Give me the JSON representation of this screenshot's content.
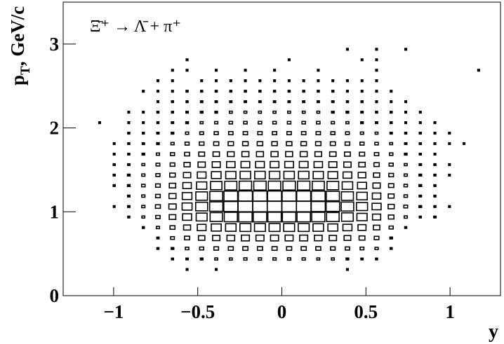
{
  "chart_data": {
    "type": "box2d",
    "annotation": "Ξ̄⁺ → Λ̄ + π⁺",
    "x_label": "y",
    "y_label": {
      "main": "p",
      "sub": "T",
      "rest": ", GeV/c"
    },
    "xlim": [
      -1.3,
      1.3
    ],
    "ylim": [
      0,
      3.5
    ],
    "xticks": [
      {
        "value": -1,
        "label": "−1"
      },
      {
        "value": -0.5,
        "label": "−0.5"
      },
      0,
      0.5,
      1
    ],
    "yticks": [
      0,
      1,
      2,
      3
    ],
    "color": "#000000",
    "z": [
      [
        0,
        0,
        0,
        0,
        0,
        0,
        0,
        0,
        0,
        0,
        0,
        0,
        0,
        0,
        0,
        0,
        0,
        0,
        0,
        0,
        0,
        0,
        0,
        0,
        0,
        0,
        0,
        0,
        0,
        0
      ],
      [
        0,
        0,
        0,
        0,
        0,
        0,
        0,
        0,
        0,
        0,
        0,
        0,
        0,
        0,
        0,
        0,
        0,
        0,
        0,
        0,
        0,
        0,
        0,
        0,
        0,
        0,
        0,
        0,
        0,
        0
      ],
      [
        0,
        0,
        0,
        0,
        0,
        0,
        0,
        0,
        12,
        0,
        12,
        0,
        0,
        0,
        0,
        0,
        0,
        0,
        0,
        12,
        0,
        0,
        0,
        0,
        0,
        0,
        0,
        0,
        0,
        0
      ],
      [
        0,
        0,
        0,
        0,
        0,
        0,
        0,
        14,
        16,
        18,
        20,
        20,
        22,
        22,
        22,
        22,
        22,
        20,
        20,
        18,
        16,
        14,
        0,
        0,
        0,
        0,
        0,
        0,
        0,
        0
      ],
      [
        0,
        0,
        0,
        0,
        0,
        0,
        14,
        18,
        24,
        28,
        32,
        34,
        35,
        35,
        35,
        35,
        35,
        34,
        32,
        30,
        26,
        22,
        14,
        0,
        0,
        0,
        0,
        0,
        0,
        0
      ],
      [
        0,
        0,
        0,
        0,
        0,
        0,
        16,
        26,
        35,
        44,
        50,
        53,
        55,
        55,
        55,
        55,
        55,
        53,
        50,
        46,
        40,
        32,
        18,
        0,
        0,
        0,
        0,
        0,
        0,
        0
      ],
      [
        0,
        0,
        0,
        0,
        0,
        14,
        22,
        34,
        48,
        60,
        68,
        72,
        75,
        75,
        75,
        75,
        75,
        72,
        68,
        62,
        55,
        44,
        28,
        14,
        0,
        0,
        0,
        0,
        0,
        0
      ],
      [
        0,
        0,
        0,
        0,
        14,
        20,
        30,
        45,
        62,
        75,
        84,
        90,
        92,
        92,
        92,
        92,
        92,
        90,
        86,
        80,
        70,
        56,
        38,
        22,
        14,
        16,
        0,
        0,
        0,
        0
      ],
      [
        0,
        0,
        0,
        12,
        16,
        22,
        34,
        50,
        68,
        82,
        90,
        96,
        100,
        100,
        100,
        100,
        100,
        96,
        92,
        86,
        76,
        62,
        42,
        26,
        18,
        14,
        12,
        0,
        0,
        0
      ],
      [
        0,
        0,
        0,
        0,
        16,
        22,
        32,
        48,
        66,
        80,
        88,
        94,
        96,
        96,
        96,
        96,
        96,
        94,
        90,
        82,
        72,
        58,
        40,
        24,
        16,
        14,
        0,
        0,
        0,
        0
      ],
      [
        0,
        0,
        0,
        14,
        18,
        24,
        32,
        44,
        58,
        70,
        78,
        83,
        85,
        85,
        85,
        85,
        85,
        83,
        80,
        72,
        62,
        50,
        36,
        24,
        18,
        14,
        0,
        0,
        0,
        0
      ],
      [
        0,
        0,
        0,
        14,
        18,
        22,
        28,
        38,
        50,
        60,
        66,
        70,
        72,
        72,
        72,
        72,
        72,
        70,
        66,
        60,
        52,
        42,
        32,
        22,
        18,
        14,
        12,
        0,
        0,
        0
      ],
      [
        0,
        0,
        0,
        14,
        16,
        20,
        26,
        32,
        42,
        50,
        55,
        58,
        60,
        60,
        60,
        60,
        60,
        58,
        55,
        50,
        44,
        36,
        28,
        20,
        16,
        14,
        12,
        0,
        0,
        0
      ],
      [
        0,
        0,
        0,
        12,
        14,
        18,
        22,
        28,
        34,
        40,
        44,
        46,
        48,
        48,
        48,
        48,
        48,
        46,
        44,
        40,
        36,
        30,
        24,
        18,
        14,
        12,
        0,
        0,
        0,
        0
      ],
      [
        0,
        0,
        0,
        12,
        14,
        16,
        18,
        22,
        28,
        32,
        35,
        37,
        38,
        38,
        38,
        38,
        38,
        37,
        35,
        32,
        28,
        24,
        20,
        16,
        14,
        12,
        12,
        12,
        0,
        0
      ],
      [
        0,
        0,
        0,
        0,
        14,
        14,
        16,
        18,
        22,
        26,
        28,
        30,
        30,
        30,
        30,
        30,
        30,
        30,
        28,
        26,
        22,
        20,
        16,
        14,
        14,
        12,
        12,
        0,
        0,
        0
      ],
      [
        0,
        0,
        12,
        0,
        12,
        12,
        14,
        16,
        18,
        20,
        22,
        24,
        24,
        24,
        24,
        24,
        24,
        24,
        22,
        20,
        18,
        16,
        14,
        12,
        12,
        12,
        0,
        0,
        0,
        0
      ],
      [
        0,
        0,
        0,
        0,
        12,
        12,
        14,
        14,
        16,
        18,
        18,
        20,
        20,
        20,
        20,
        20,
        20,
        20,
        18,
        18,
        16,
        14,
        14,
        12,
        12,
        0,
        0,
        0,
        0,
        0
      ],
      [
        0,
        0,
        0,
        0,
        0,
        0,
        12,
        14,
        14,
        16,
        16,
        16,
        16,
        16,
        16,
        16,
        16,
        16,
        16,
        14,
        14,
        12,
        12,
        12,
        0,
        0,
        0,
        0,
        0,
        0
      ],
      [
        0,
        0,
        0,
        0,
        0,
        12,
        12,
        12,
        14,
        14,
        14,
        14,
        14,
        14,
        14,
        14,
        14,
        14,
        14,
        12,
        12,
        12,
        12,
        0,
        0,
        0,
        0,
        0,
        0,
        0
      ],
      [
        0,
        0,
        0,
        0,
        0,
        0,
        12,
        12,
        0,
        12,
        12,
        12,
        12,
        12,
        12,
        12,
        12,
        12,
        12,
        12,
        12,
        12,
        0,
        0,
        0,
        0,
        0,
        0,
        0,
        0
      ],
      [
        0,
        0,
        0,
        0,
        0,
        0,
        0,
        12,
        12,
        0,
        12,
        0,
        12,
        0,
        12,
        0,
        0,
        12,
        0,
        0,
        0,
        12,
        0,
        0,
        0,
        0,
        0,
        0,
        12,
        0
      ],
      [
        0,
        0,
        0,
        0,
        0,
        0,
        0,
        0,
        12,
        0,
        0,
        0,
        0,
        0,
        0,
        12,
        0,
        0,
        0,
        0,
        12,
        12,
        0,
        0,
        0,
        0,
        0,
        0,
        0,
        0
      ],
      [
        0,
        0,
        0,
        0,
        0,
        0,
        0,
        0,
        0,
        0,
        0,
        0,
        0,
        0,
        0,
        0,
        0,
        0,
        0,
        12,
        0,
        12,
        0,
        12,
        0,
        0,
        0,
        0,
        0,
        0
      ],
      [
        0,
        0,
        0,
        0,
        0,
        0,
        0,
        0,
        0,
        0,
        0,
        0,
        0,
        0,
        0,
        0,
        0,
        0,
        0,
        0,
        0,
        0,
        0,
        0,
        0,
        0,
        0,
        0,
        0,
        0
      ],
      [
        0,
        0,
        0,
        0,
        0,
        0,
        0,
        0,
        0,
        0,
        0,
        0,
        0,
        0,
        0,
        0,
        0,
        0,
        0,
        0,
        0,
        0,
        0,
        0,
        0,
        0,
        0,
        0,
        0,
        0
      ],
      [
        0,
        0,
        0,
        0,
        0,
        0,
        0,
        0,
        0,
        0,
        0,
        0,
        0,
        0,
        0,
        0,
        0,
        0,
        0,
        0,
        0,
        0,
        0,
        0,
        0,
        0,
        0,
        0,
        0,
        0
      ],
      [
        0,
        0,
        0,
        0,
        0,
        0,
        0,
        0,
        0,
        0,
        0,
        0,
        0,
        0,
        0,
        0,
        0,
        0,
        0,
        0,
        0,
        0,
        0,
        0,
        0,
        0,
        0,
        0,
        0,
        0
      ]
    ]
  }
}
